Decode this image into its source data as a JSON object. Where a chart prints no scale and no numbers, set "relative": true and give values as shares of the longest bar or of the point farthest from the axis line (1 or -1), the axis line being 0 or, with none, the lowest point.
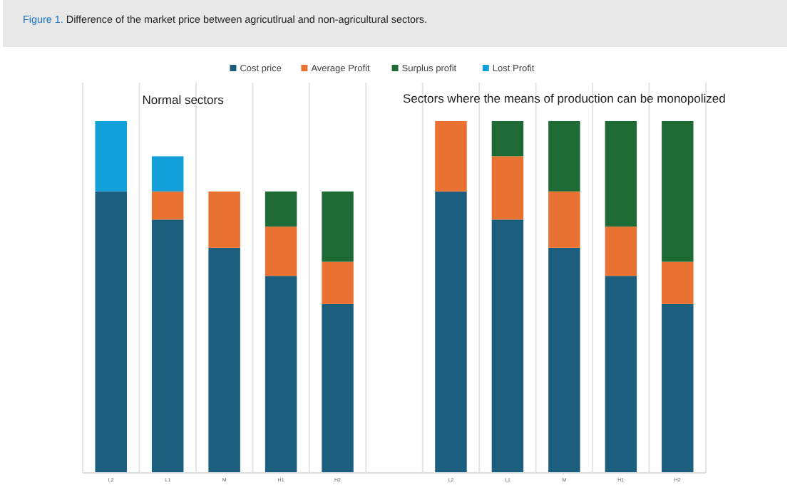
{
  "chart_data": {
    "type": "bar",
    "stacked": true,
    "relative": true,
    "title": "Figure 1. Difference of the market price between agricutlrual and non-agricultural sectors.",
    "categories": [
      "L2",
      "L1",
      "M",
      "H1",
      "H2",
      null,
      "L2",
      "L1",
      "M",
      "H1",
      "H2"
    ],
    "series": [
      {
        "name": "Cost price",
        "color": "#1b5e7e",
        "values": [
          0.8,
          0.72,
          0.64,
          0.56,
          0.48,
          null,
          0.8,
          0.72,
          0.64,
          0.56,
          0.48
        ]
      },
      {
        "name": "Average Profit",
        "color": "#e97132",
        "values": [
          null,
          0.08,
          0.16,
          0.14,
          0.12,
          null,
          0.2,
          0.18,
          0.16,
          0.14,
          0.12
        ]
      },
      {
        "name": "Surplus profit",
        "color": "#1e6b35",
        "values": [
          null,
          null,
          null,
          0.1,
          0.2,
          null,
          null,
          0.1,
          0.2,
          0.3,
          0.4
        ]
      },
      {
        "name": "Lost Profit",
        "color": "#13a0d8",
        "values": [
          0.2,
          0.1,
          null,
          null,
          null,
          null,
          null,
          null,
          null,
          null,
          null
        ]
      }
    ],
    "annotations": [
      "Normal sectors",
      "Sectors where the means of production can be monopolized"
    ],
    "legend": "top",
    "grid": "x"
  }
}
